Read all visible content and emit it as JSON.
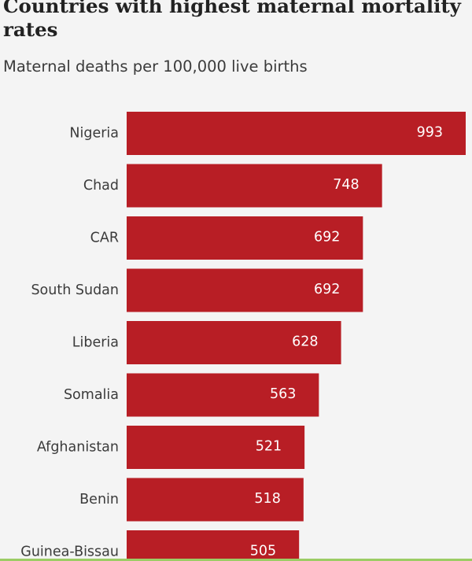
{
  "chart_data": {
    "type": "bar",
    "orientation": "horizontal",
    "title": "Countries with highest maternal mortality rates",
    "subtitle": "Maternal deaths per 100,000 live births",
    "categories": [
      "Nigeria",
      "Chad",
      "CAR",
      "South Sudan",
      "Liberia",
      "Somalia",
      "Afghanistan",
      "Benin",
      "Guinea-Bissau"
    ],
    "values": [
      993,
      748,
      692,
      692,
      628,
      563,
      521,
      518,
      505
    ],
    "xlabel": "",
    "ylabel": "",
    "xlim": [
      0,
      993
    ],
    "grid": false,
    "legend": "none",
    "bar_color": "#b81e25",
    "label_color": "#ffffff"
  },
  "colors": {
    "background": "#f4f4f4",
    "title": "#222222",
    "category_label": "#3b3b3b",
    "bottom_rule": "#9ccc65"
  }
}
